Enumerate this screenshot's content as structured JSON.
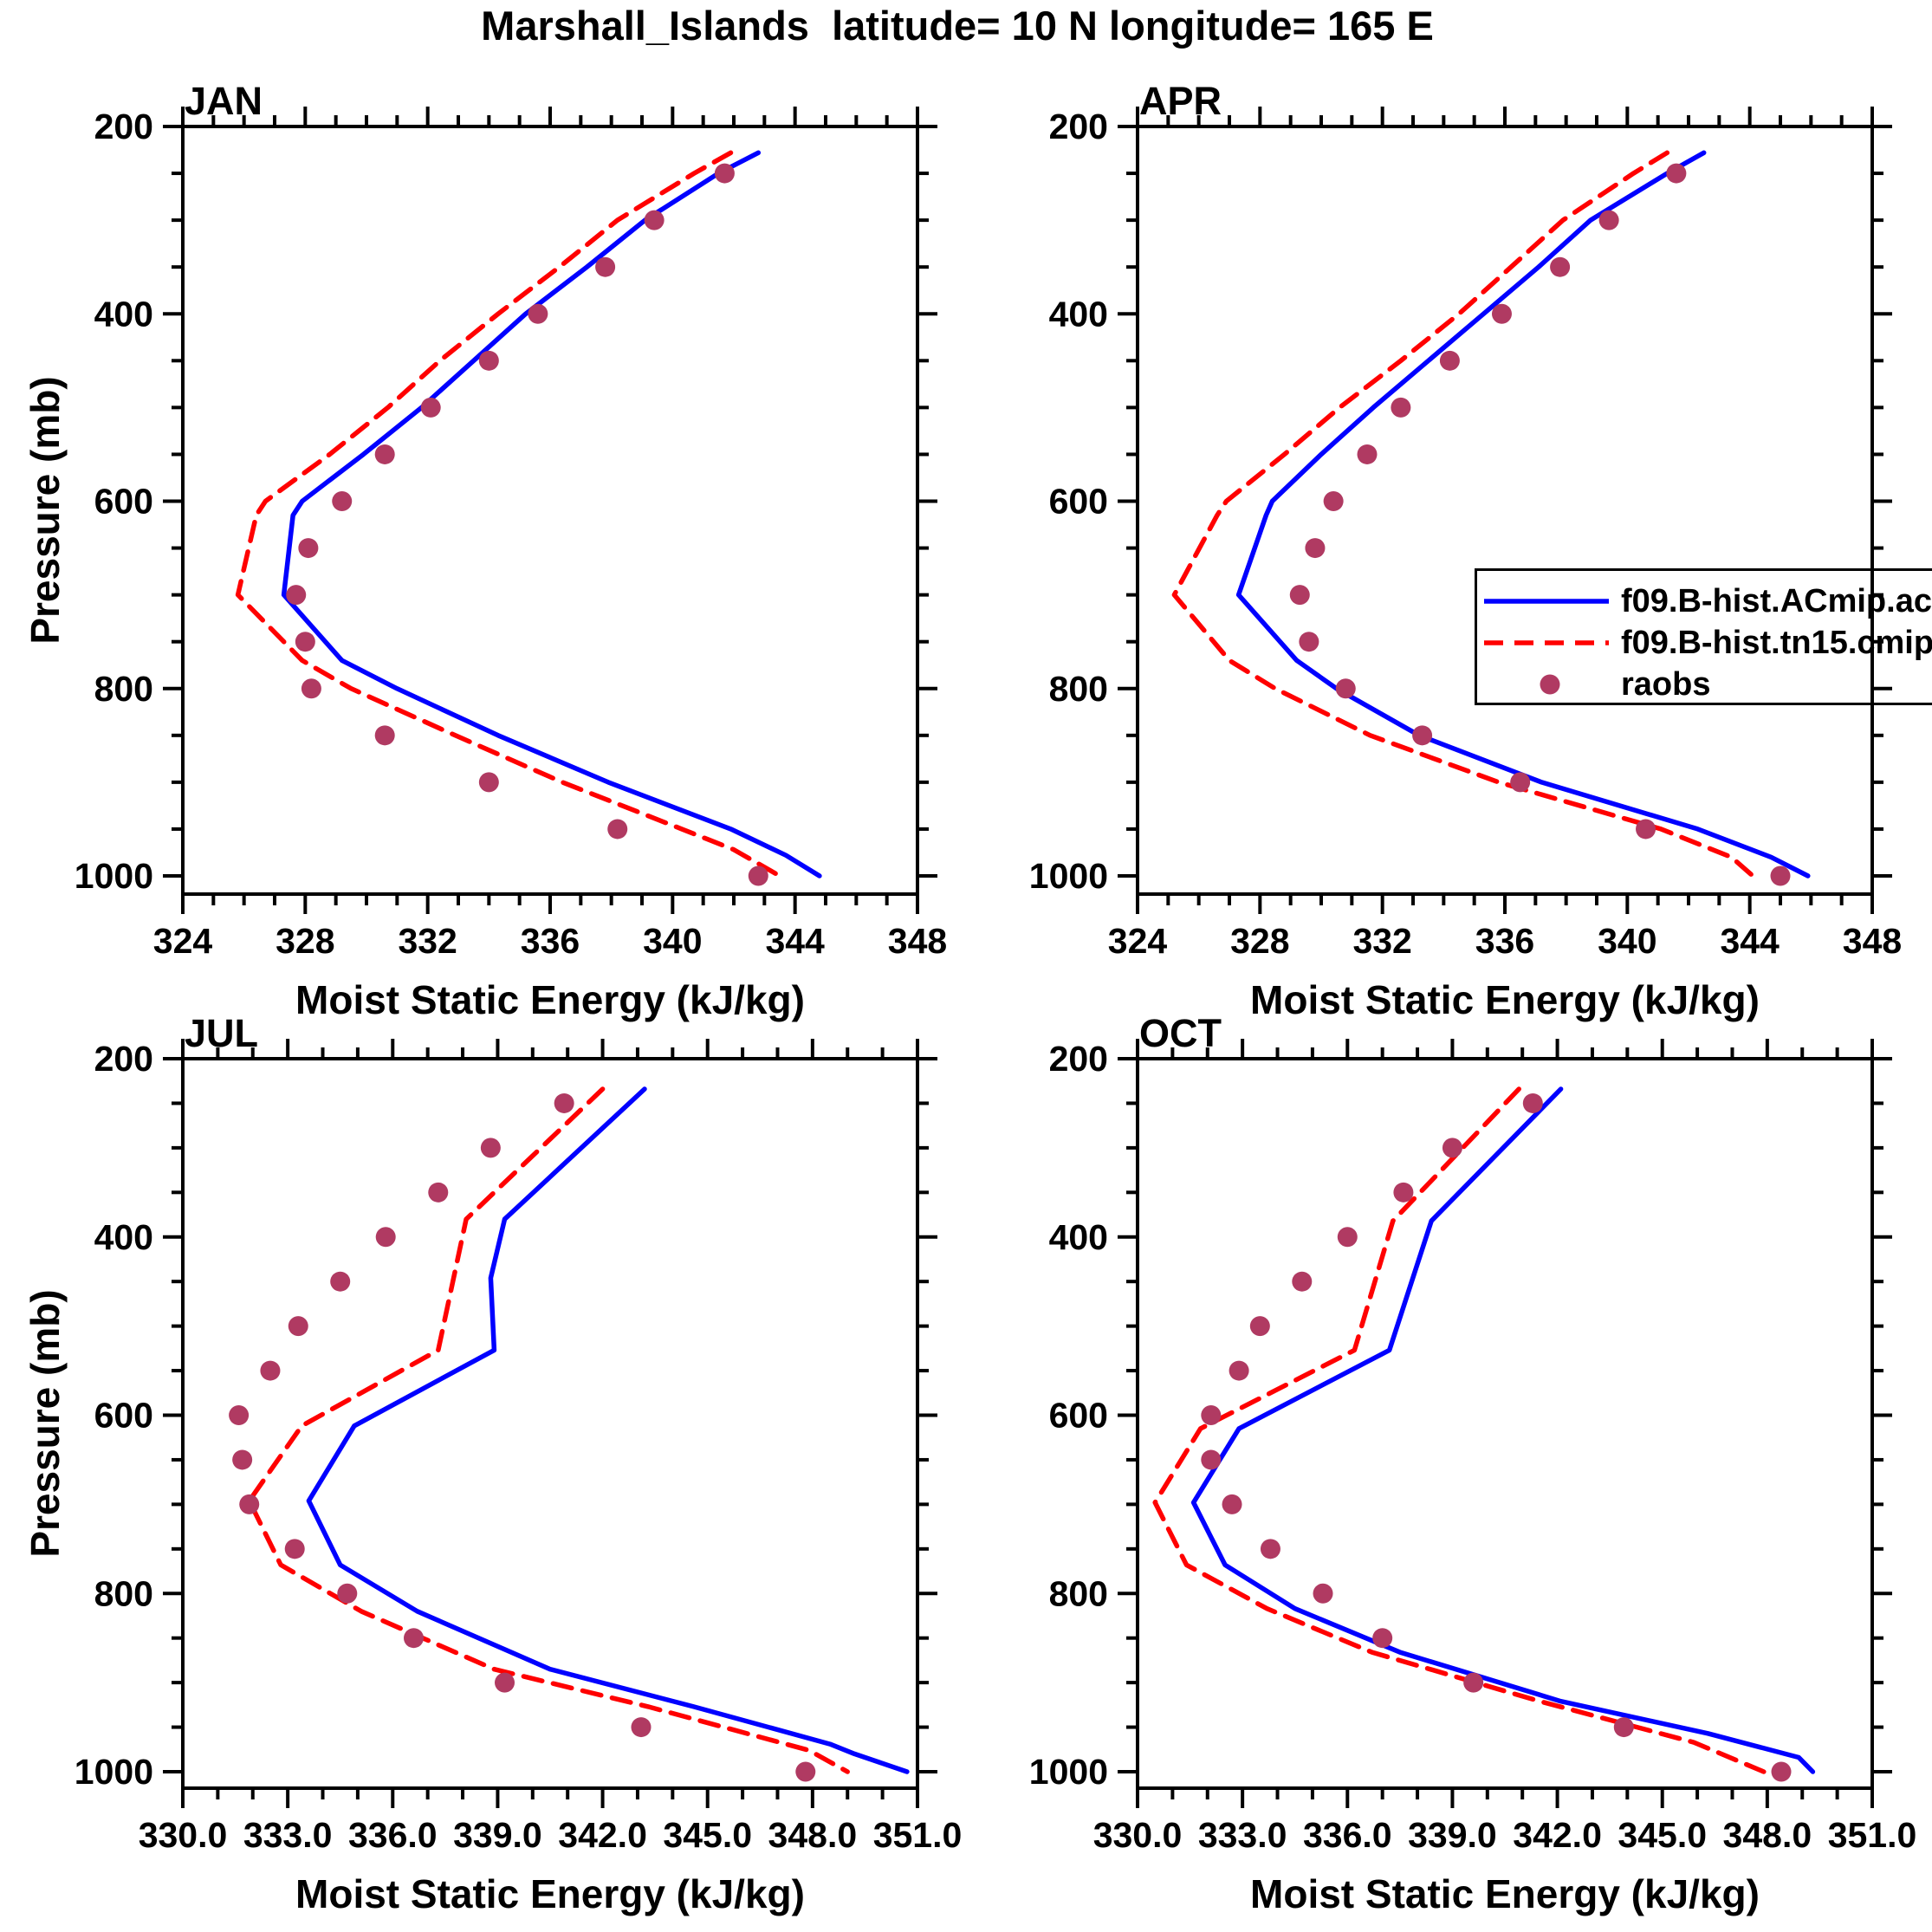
{
  "title": "Marshall_Islands  latitude= 10 N longitude= 165 E",
  "ylabel": "Pressure (mb)",
  "xlabel": "Moist Static Energy (kJ/kg)",
  "colors": {
    "model_solid": "#0000FF",
    "model_dashed": "#FF0000",
    "obs_dots": "#B03A62",
    "axis": "#000000"
  },
  "legend": {
    "items": [
      {
        "label": "f09.B-hist.ACmip.ac",
        "style": "solid",
        "color": "#0000FF"
      },
      {
        "label": "f09.B-hist.tn15.cmip",
        "style": "dashed",
        "color": "#FF0000"
      },
      {
        "label": "raobs",
        "style": "dot",
        "color": "#B03A62"
      }
    ]
  },
  "chart_data": [
    {
      "type": "line",
      "title": "JAN",
      "xlabel": "Moist Static Energy (kJ/kg)",
      "ylabel": "Pressure (mb)",
      "xlim": [
        324,
        348
      ],
      "x_major_ticks": [
        324,
        328,
        332,
        336,
        340,
        344,
        348
      ],
      "x_tick_labels": [
        "324",
        "328",
        "332",
        "336",
        "340",
        "344",
        "348"
      ],
      "x_minor_step": 1,
      "ylim": [
        200,
        1019
      ],
      "y_major_ticks": [
        200,
        400,
        600,
        800,
        1000
      ],
      "y_tick_labels": [
        "200",
        "400",
        "600",
        "800",
        "1000"
      ],
      "y_minor_step": 50,
      "y_axis_direction": "pressure-increasing-down",
      "grid": false,
      "series": [
        {
          "name": "f09.B-hist.ACmip.ac",
          "type": "line",
          "dash": false,
          "color": "#0000FF",
          "points": [
            [
              228,
              342.8
            ],
            [
              250,
              341.5
            ],
            [
              300,
              339.1
            ],
            [
              350,
              337.2
            ],
            [
              400,
              335.2
            ],
            [
              450,
              333.5
            ],
            [
              500,
              331.8
            ],
            [
              550,
              329.9
            ],
            [
              600,
              327.9
            ],
            [
              615,
              327.6
            ],
            [
              700,
              327.3
            ],
            [
              770,
              329.2
            ],
            [
              800,
              331.0
            ],
            [
              850,
              334.3
            ],
            [
              900,
              337.9
            ],
            [
              950,
              341.9
            ],
            [
              978,
              343.7
            ],
            [
              1000,
              344.8
            ]
          ]
        },
        {
          "name": "f09.B-hist.tn15.cmip",
          "type": "line",
          "dash": true,
          "color": "#FF0000",
          "points": [
            [
              228,
              341.9
            ],
            [
              250,
              340.7
            ],
            [
              300,
              338.2
            ],
            [
              350,
              336.3
            ],
            [
              400,
              334.3
            ],
            [
              450,
              332.4
            ],
            [
              500,
              330.7
            ],
            [
              550,
              328.8
            ],
            [
              600,
              326.7
            ],
            [
              615,
              326.4
            ],
            [
              700,
              325.8
            ],
            [
              770,
              327.9
            ],
            [
              800,
              329.5
            ],
            [
              850,
              332.9
            ],
            [
              900,
              336.4
            ],
            [
              950,
              340.3
            ],
            [
              972,
              342.0
            ],
            [
              1000,
              343.5
            ]
          ]
        },
        {
          "name": "raobs",
          "type": "scatter",
          "color": "#B03A62",
          "points": [
            [
              250,
              341.7
            ],
            [
              300,
              339.4
            ],
            [
              350,
              337.8
            ],
            [
              400,
              335.6
            ],
            [
              450,
              334.0
            ],
            [
              500,
              332.1
            ],
            [
              550,
              330.6
            ],
            [
              600,
              329.2
            ],
            [
              650,
              328.1
            ],
            [
              700,
              327.7
            ],
            [
              750,
              328.0
            ],
            [
              800,
              328.2
            ],
            [
              850,
              330.6
            ],
            [
              900,
              334.0
            ],
            [
              950,
              338.2
            ],
            [
              1000,
              342.8
            ]
          ]
        }
      ]
    },
    {
      "type": "line",
      "title": "APR",
      "xlabel": "Moist Static Energy (kJ/kg)",
      "ylabel": "Pressure (mb)",
      "xlim": [
        324,
        348
      ],
      "x_major_ticks": [
        324,
        328,
        332,
        336,
        340,
        344,
        348
      ],
      "x_tick_labels": [
        "324",
        "328",
        "332",
        "336",
        "340",
        "344",
        "348"
      ],
      "x_minor_step": 1,
      "ylim": [
        200,
        1019
      ],
      "y_major_ticks": [
        200,
        400,
        600,
        800,
        1000
      ],
      "y_tick_labels": [
        "200",
        "400",
        "600",
        "800",
        "1000"
      ],
      "y_minor_step": 50,
      "y_axis_direction": "pressure-increasing-down",
      "grid": false,
      "has_legend": true,
      "series": [
        {
          "name": "f09.B-hist.ACmip.ac",
          "type": "line",
          "dash": false,
          "color": "#0000FF",
          "points": [
            [
              228,
              342.5
            ],
            [
              250,
              341.3
            ],
            [
              300,
              338.8
            ],
            [
              350,
              337.1
            ],
            [
              400,
              335.3
            ],
            [
              450,
              333.5
            ],
            [
              500,
              331.7
            ],
            [
              550,
              330.0
            ],
            [
              600,
              328.4
            ],
            [
              615,
              328.2
            ],
            [
              700,
              327.3
            ],
            [
              770,
              329.2
            ],
            [
              800,
              330.5
            ],
            [
              850,
              333.2
            ],
            [
              900,
              337.2
            ],
            [
              950,
              342.3
            ],
            [
              980,
              344.7
            ],
            [
              1000,
              345.9
            ]
          ]
        },
        {
          "name": "f09.B-hist.tn15.cmip",
          "type": "line",
          "dash": true,
          "color": "#FF0000",
          "points": [
            [
              228,
              341.3
            ],
            [
              250,
              340.2
            ],
            [
              300,
              337.9
            ],
            [
              350,
              336.2
            ],
            [
              400,
              334.5
            ],
            [
              450,
              332.6
            ],
            [
              500,
              330.6
            ],
            [
              550,
              328.8
            ],
            [
              600,
              326.9
            ],
            [
              615,
              326.6
            ],
            [
              700,
              325.2
            ],
            [
              770,
              327.0
            ],
            [
              800,
              328.5
            ],
            [
              850,
              331.6
            ],
            [
              900,
              335.8
            ],
            [
              950,
              341.1
            ],
            [
              980,
              343.4
            ],
            [
              1000,
              344.1
            ]
          ]
        },
        {
          "name": "raobs",
          "type": "scatter",
          "color": "#B03A62",
          "points": [
            [
              250,
              341.6
            ],
            [
              300,
              339.4
            ],
            [
              350,
              337.8
            ],
            [
              400,
              335.9
            ],
            [
              450,
              334.2
            ],
            [
              500,
              332.6
            ],
            [
              550,
              331.5
            ],
            [
              600,
              330.4
            ],
            [
              650,
              329.8
            ],
            [
              700,
              329.3
            ],
            [
              750,
              329.6
            ],
            [
              800,
              330.8
            ],
            [
              850,
              333.3
            ],
            [
              900,
              336.5
            ],
            [
              950,
              340.6
            ],
            [
              1000,
              345.0
            ]
          ]
        }
      ]
    },
    {
      "type": "line",
      "title": "JUL",
      "xlabel": "Moist Static Energy (kJ/kg)",
      "ylabel": "Pressure (mb)",
      "xlim": [
        330,
        351
      ],
      "x_major_ticks": [
        330,
        333,
        336,
        339,
        342,
        345,
        348,
        351
      ],
      "x_tick_labels": [
        "330.0",
        "333.0",
        "336.0",
        "339.0",
        "342.0",
        "345.0",
        "348.0",
        "351.0"
      ],
      "x_minor_step": 1,
      "ylim": [
        200,
        1018
      ],
      "y_major_ticks": [
        200,
        400,
        600,
        800,
        1000
      ],
      "y_tick_labels": [
        "200",
        "400",
        "600",
        "800",
        "1000"
      ],
      "y_minor_step": 50,
      "y_axis_direction": "pressure-increasing-down",
      "grid": false,
      "series": [
        {
          "name": "f09.B-hist.ACmip.ac",
          "type": "line",
          "dash": false,
          "color": "#0000FF",
          "points": [
            [
              234,
              343.2
            ],
            [
              380,
              339.2
            ],
            [
              446,
              338.8
            ],
            [
              527,
              338.9
            ],
            [
              612,
              334.9
            ],
            [
              696,
              333.6
            ],
            [
              768,
              334.5
            ],
            [
              820,
              336.7
            ],
            [
              885,
              340.5
            ],
            [
              927,
              344.6
            ],
            [
              969,
              348.5
            ],
            [
              980,
              349.2
            ],
            [
              1000,
              350.7
            ]
          ]
        },
        {
          "name": "f09.B-hist.tn15.cmip",
          "type": "line",
          "dash": true,
          "color": "#FF0000",
          "points": [
            [
              234,
              342.0
            ],
            [
              380,
              338.1
            ],
            [
              527,
              337.3
            ],
            [
              612,
              333.4
            ],
            [
              696,
              331.9
            ],
            [
              768,
              332.8
            ],
            [
              820,
              335.1
            ],
            [
              885,
              338.9
            ],
            [
              927,
              343.3
            ],
            [
              976,
              347.9
            ],
            [
              1000,
              349.0
            ]
          ]
        },
        {
          "name": "raobs",
          "type": "scatter",
          "color": "#B03A62",
          "points": [
            [
              250,
              340.9
            ],
            [
              300,
              338.8
            ],
            [
              350,
              337.3
            ],
            [
              400,
              335.8
            ],
            [
              450,
              334.5
            ],
            [
              500,
              333.3
            ],
            [
              550,
              332.5
            ],
            [
              600,
              331.6
            ],
            [
              650,
              331.7
            ],
            [
              700,
              331.9
            ],
            [
              750,
              333.2
            ],
            [
              800,
              334.7
            ],
            [
              850,
              336.6
            ],
            [
              900,
              339.2
            ],
            [
              950,
              343.1
            ],
            [
              1000,
              347.8
            ]
          ]
        }
      ]
    },
    {
      "type": "line",
      "title": "OCT",
      "xlabel": "Moist Static Energy (kJ/kg)",
      "ylabel": "Pressure (mb)",
      "xlim": [
        330,
        351
      ],
      "x_major_ticks": [
        330,
        333,
        336,
        339,
        342,
        345,
        348,
        351
      ],
      "x_tick_labels": [
        "330.0",
        "333.0",
        "336.0",
        "339.0",
        "342.0",
        "345.0",
        "348.0",
        "351.0"
      ],
      "x_minor_step": 1,
      "ylim": [
        200,
        1018
      ],
      "y_major_ticks": [
        200,
        400,
        600,
        800,
        1000
      ],
      "y_tick_labels": [
        "200",
        "400",
        "600",
        "800",
        "1000"
      ],
      "y_minor_step": 50,
      "y_axis_direction": "pressure-increasing-down",
      "grid": false,
      "series": [
        {
          "name": "f09.B-hist.ACmip.ac",
          "type": "line",
          "dash": false,
          "color": "#0000FF",
          "points": [
            [
              234,
              342.1
            ],
            [
              382,
              338.4
            ],
            [
              527,
              337.2
            ],
            [
              615,
              332.9
            ],
            [
              698,
              331.6
            ],
            [
              768,
              332.5
            ],
            [
              817,
              334.5
            ],
            [
              866,
              337.5
            ],
            [
              921,
              342.1
            ],
            [
              957,
              346.3
            ],
            [
              984,
              348.9
            ],
            [
              1000,
              349.3
            ]
          ]
        },
        {
          "name": "f09.B-hist.tn15.cmip",
          "type": "line",
          "dash": true,
          "color": "#FF0000",
          "points": [
            [
              234,
              340.9
            ],
            [
              382,
              337.3
            ],
            [
              527,
              336.2
            ],
            [
              615,
              331.8
            ],
            [
              698,
              330.5
            ],
            [
              768,
              331.4
            ],
            [
              817,
              333.7
            ],
            [
              866,
              336.7
            ],
            [
              921,
              341.5
            ],
            [
              967,
              345.9
            ],
            [
              1000,
              347.9
            ]
          ]
        },
        {
          "name": "raobs",
          "type": "scatter",
          "color": "#B03A62",
          "points": [
            [
              250,
              341.3
            ],
            [
              300,
              339.0
            ],
            [
              350,
              337.6
            ],
            [
              400,
              336.0
            ],
            [
              450,
              334.7
            ],
            [
              500,
              333.5
            ],
            [
              550,
              332.9
            ],
            [
              600,
              332.1
            ],
            [
              650,
              332.1
            ],
            [
              700,
              332.7
            ],
            [
              750,
              333.8
            ],
            [
              800,
              335.3
            ],
            [
              850,
              337.0
            ],
            [
              900,
              339.6
            ],
            [
              950,
              343.9
            ],
            [
              1000,
              348.4
            ]
          ]
        }
      ]
    }
  ]
}
